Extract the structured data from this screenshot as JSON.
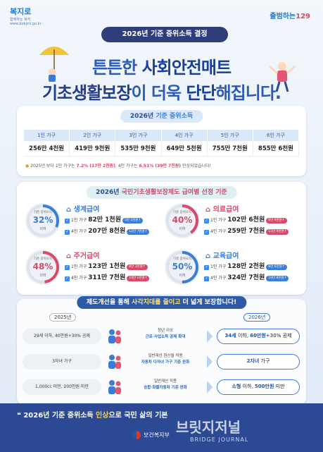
{
  "header": {
    "left_logo_mark": "복지로",
    "left_logo_sub": "함께하는 복지",
    "left_logo_url": "www.bokjiro.go.kr",
    "right_logo_text": "출범하는",
    "right_logo_num": "129"
  },
  "title_pill": "2026년 기준 중위소득 결정",
  "headline": {
    "line1_a": "튼튼한 ",
    "line1_b": "사회안전매트",
    "line2_a": "기초생활보장",
    "line2_b": "이 더욱 ",
    "line2_c": "단단",
    "line2_d": "해집니다."
  },
  "income": {
    "title_a": "2026년 ",
    "title_b": "기준 중위소득",
    "headers": [
      "1인 가구",
      "2인 가구",
      "3인 가구",
      "4인 가구",
      "5인 가구",
      "6인 가구"
    ],
    "values": [
      "256만 4천원",
      "419만 9천원",
      "535만 9천원",
      "649만 5천원",
      "755만 7천원",
      "855만 6천원"
    ],
    "note_a": "2025년 보다 1인 가구는 ",
    "note_b": "7.2% (17만 2천원)",
    "note_c": ", 4인 가구는 ",
    "note_d": "6.51% (39만 7천원)",
    "note_e": " 인상되었습니다!"
  },
  "benefits": {
    "title_a": "2026년 ",
    "title_b": "국민기초생활보장제도 급여별 선정 기준",
    "items": [
      {
        "ring_top": "기준 중위소득",
        "percent": "32%",
        "ring_bottom": "이하",
        "percent_value": 32,
        "color": "#3a7fd6",
        "title": "생계급여",
        "line1_label": "1인 가구",
        "line1_amt": "82만 1천원",
        "line1_tag": "5만 5천원↑",
        "line2_label": "4인 가구",
        "line2_amt": "207만 8천원",
        "line2_tag": "12만 7천원↑"
      },
      {
        "ring_top": "기준 중위소득",
        "percent": "40%",
        "ring_bottom": "이하",
        "percent_value": 40,
        "color": "#d9496a",
        "title": "의료급여",
        "line1_label": "1인 가구",
        "line1_amt": "102만 6천원",
        "line1_tag": "6만 9천원↑",
        "line2_label": "4인 가구",
        "line2_amt": "259만 7천원",
        "line2_tag": "15만 9천원↑"
      },
      {
        "ring_top": "기준 중위소득",
        "percent": "48%",
        "ring_bottom": "이하",
        "percent_value": 48,
        "color": "#d9496a",
        "title": "주거급여",
        "line1_label": "1인 가구",
        "line1_amt": "123만 1천원",
        "line1_tag": "8만 3천원↑",
        "line2_label": "4인 가구",
        "line2_amt": "311만 7천원",
        "line2_tag": "19만 1천원↑"
      },
      {
        "ring_top": "기준 중위소득",
        "percent": "50%",
        "ring_bottom": "이하",
        "percent_value": 50,
        "color": "#3a7fd6",
        "title": "교육급여",
        "line1_label": "1인 가구",
        "line1_amt": "128만 2천원",
        "line1_tag": "8만 6천원↑",
        "line2_label": "4인 가구",
        "line2_amt": "324만 7천원",
        "line2_tag": "19만 8천원↑"
      }
    ]
  },
  "improve": {
    "title_a": "제도개선을 통해 ",
    "title_b": "사각지대를 줄이고",
    "title_c": " 더 넓게 보장합니다!",
    "old_label": "2025년",
    "new_label": "2026년",
    "rows": [
      {
        "old": "29세 이하, 40만원+30% 공제",
        "mid1": "청년 이상",
        "mid2": "근로·사업소득 공제 확대",
        "new_a": "34세",
        "new_b": " 이하, ",
        "new_c": "60만원",
        "new_d": "+30% 공제"
      },
      {
        "old": "3자녀 가구",
        "mid1": "일반재산 환산율 적용",
        "mid2": "자동차 다자녀 가구 기준 완화",
        "new_a": "2자녀",
        "new_b": " 가구",
        "new_c": "",
        "new_d": ""
      },
      {
        "old": "1,000cc 미만, 200만원 미만",
        "mid1": "일반재산 적용",
        "mid2": "승합·화물자동차 기준 완화",
        "new_a": "소형",
        "new_b": " 이하, ",
        "new_c": "500만원",
        "new_d": " 미만"
      }
    ]
  },
  "footer": {
    "slogan_a": "❝ 2026년 기준 중위소득 ",
    "slogan_b": "인상",
    "slogan_c": "으로 국민 삶의 기본",
    "ministry": "보건복지부",
    "watermark_main": "브릿지저널",
    "watermark_sub": "BRIDGE JOURNAL"
  }
}
